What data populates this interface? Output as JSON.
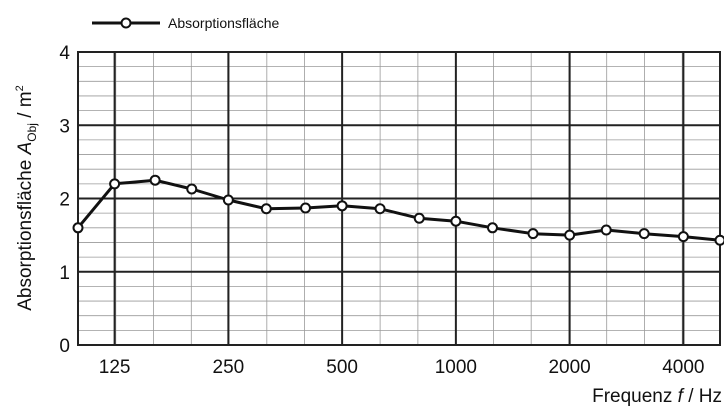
{
  "chart_data": {
    "type": "line",
    "title": "",
    "xlabel": "Frequenz f / Hz",
    "xlabel_parts": {
      "before": "Frequenz ",
      "var": "f",
      "after": " / Hz"
    },
    "ylabel": "Absorptionsfläche A_Obj / m²",
    "ylabel_parts": {
      "before": "Absorptionsfläche ",
      "var": "A",
      "sub": "Obj",
      "after": " / m",
      "sup": "2"
    },
    "x_scale": "log",
    "x_tick_labels": [
      "125",
      "250",
      "500",
      "1000",
      "2000",
      "4000"
    ],
    "x_ticks": [
      125,
      250,
      500,
      1000,
      2000,
      4000
    ],
    "xlim": [
      100,
      5000
    ],
    "y_ticks": [
      0,
      1,
      2,
      3,
      4
    ],
    "y_tick_labels": [
      "0",
      "1",
      "2",
      "3",
      "4"
    ],
    "ylim": [
      0,
      4
    ],
    "grid": true,
    "legend_position": "top-left",
    "series": [
      {
        "name": "Absorptionsfläche",
        "color": "#111111",
        "marker": "open-circle",
        "x": [
          100,
          125,
          160,
          200,
          250,
          315,
          400,
          500,
          630,
          800,
          1000,
          1250,
          1600,
          2000,
          2500,
          3150,
          4000,
          5000
        ],
        "y": [
          1.6,
          2.2,
          2.25,
          2.13,
          1.98,
          1.86,
          1.87,
          1.9,
          1.86,
          1.73,
          1.69,
          1.6,
          1.52,
          1.5,
          1.57,
          1.52,
          1.48,
          1.43
        ]
      }
    ]
  }
}
